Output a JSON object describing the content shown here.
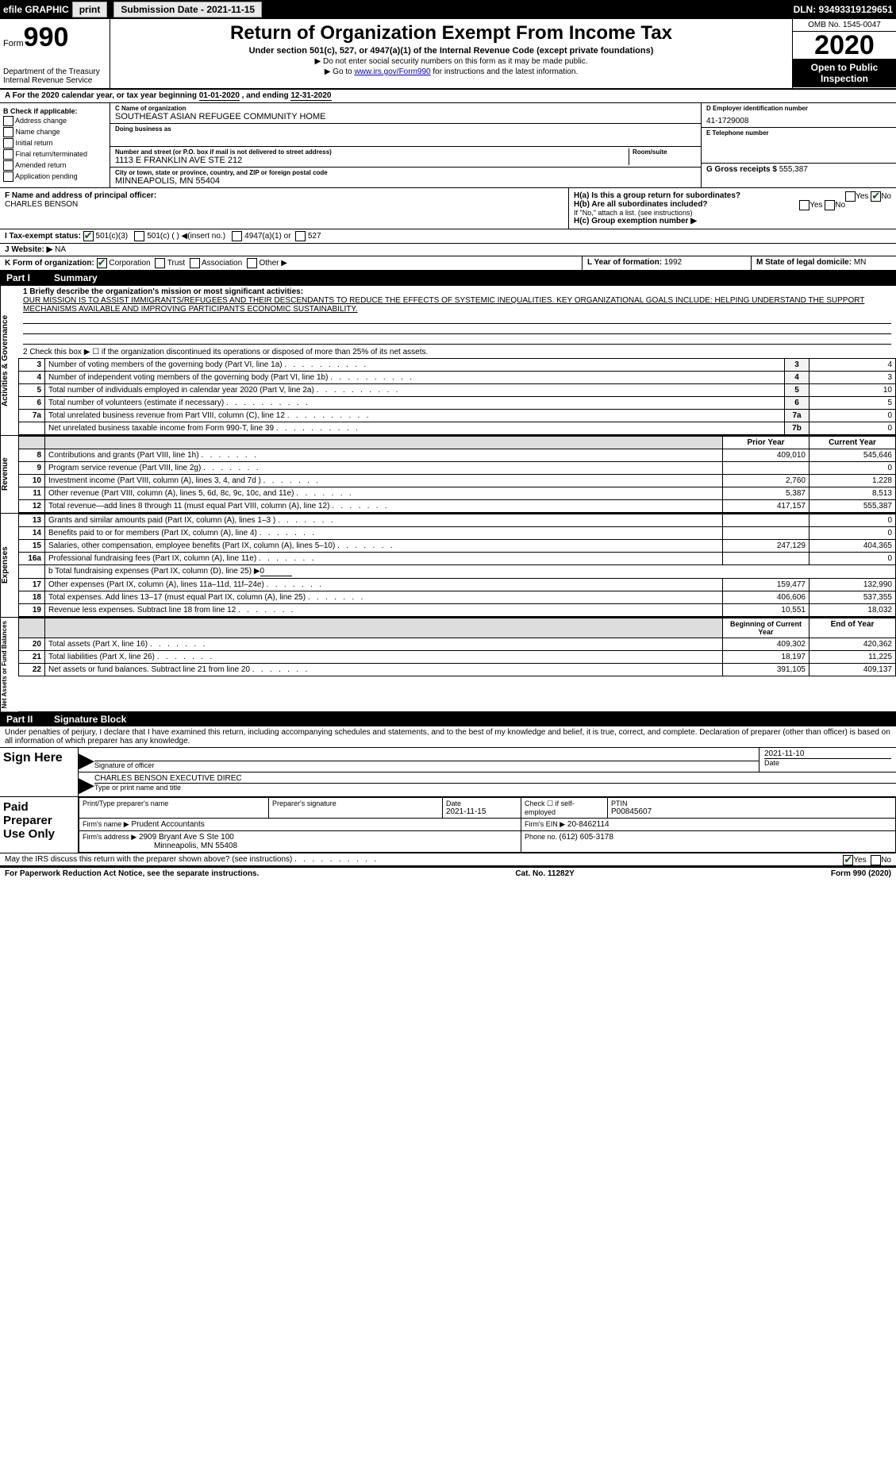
{
  "topbar": {
    "efile": "efile GRAPHIC",
    "print": "print",
    "subdate_lbl": "Submission Date - 2021-11-15",
    "dln": "DLN: 93493319129651"
  },
  "header": {
    "form_label": "Form",
    "form_num": "990",
    "dep": "Department of the Treasury",
    "irs": "Internal Revenue Service",
    "title": "Return of Organization Exempt From Income Tax",
    "sub": "Under section 501(c), 527, or 4947(a)(1) of the Internal Revenue Code (except private foundations)",
    "note1": "▶ Do not enter social security numbers on this form as it may be made public.",
    "note2_pre": "▶ Go to ",
    "note2_link": "www.irs.gov/Form990",
    "note2_post": " for instructions and the latest information.",
    "omb": "OMB No. 1545-0047",
    "year": "2020",
    "otp": "Open to Public Inspection"
  },
  "rowA": {
    "pre": "A For the 2020 calendar year, or tax year beginning ",
    "begin": "01-01-2020",
    "mid": " , and ending ",
    "end": "12-31-2020"
  },
  "colB": {
    "hdr": "B Check if applicable:",
    "items": [
      "Address change",
      "Name change",
      "Initial return",
      "Final return/terminated",
      "Amended return",
      "Application pending"
    ]
  },
  "colC": {
    "name_lbl": "C Name of organization",
    "name": "SOUTHEAST ASIAN REFUGEE COMMUNITY HOME",
    "dba_lbl": "Doing business as",
    "dba": "",
    "addr_lbl": "Number and street (or P.O. box if mail is not delivered to street address)",
    "room_lbl": "Room/suite",
    "addr": "1113 E FRANKLIN AVE STE 212",
    "city_lbl": "City or town, state or province, country, and ZIP or foreign postal code",
    "city": "MINNEAPOLIS, MN  55404",
    "f_lbl": "F  Name and address of principal officer:",
    "f_name": "CHARLES BENSON"
  },
  "colD": {
    "lbl": "D Employer identification number",
    "ein": "41-1729008",
    "e_lbl": "E Telephone number",
    "e_val": "",
    "g_lbl": "G Gross receipts $ ",
    "g_val": "555,387"
  },
  "rowH": {
    "h_a": "H(a)  Is this a group return for subordinates?",
    "h_a_yes": "Yes",
    "h_a_no": "No",
    "h_a_checked": "No",
    "h_b": "H(b)  Are all subordinates included?",
    "h_b_yes": "Yes",
    "h_b_no": "No",
    "h_note": "If \"No,\" attach a list. (see instructions)",
    "h_c": "H(c)  Group exemption number ▶"
  },
  "rowI": {
    "lbl": "I   Tax-exempt status:",
    "c1": "501(c)(3)",
    "c2": "501(c) (  ) ◀(insert no.)",
    "c3": "4947(a)(1) or",
    "c4": "527"
  },
  "rowJ": {
    "lbl": "J   Website: ▶",
    "val": "NA"
  },
  "rowK": {
    "lbl": "K Form of organization:",
    "c1": "Corporation",
    "c2": "Trust",
    "c3": "Association",
    "c4": "Other ▶"
  },
  "rowL": {
    "l": "L Year of formation: ",
    "lval": "1992",
    "m": "M State of legal domicile: ",
    "mval": "MN"
  },
  "part1": {
    "pn": "Part I",
    "title": "Summary",
    "l1": "1   Briefly describe the organization's mission or most significant activities:",
    "mission": "OUR MISSION IS TO ASSIST IMMIGRANTS/REFUGEES AND THEIR DESCENDANTS TO REDUCE THE EFFECTS OF SYSTEMIC INEQUALITIES. KEY ORGANIZATIONAL GOALS INCLUDE: HELPING UNDERSTAND THE SUPPORT MECHANISMS AVAILABLE AND IMPROVING PARTICIPANTS ECONOMIC SUSTAINABILITY.",
    "l2": "2   Check this box ▶ ☐ if the organization discontinued its operations or disposed of more than 25% of its net assets."
  },
  "gov": {
    "side": "Activities & Governance",
    "rows": [
      {
        "n": "3",
        "t": "Number of voting members of the governing body (Part VI, line 1a)",
        "lbl": "3",
        "v": "4"
      },
      {
        "n": "4",
        "t": "Number of independent voting members of the governing body (Part VI, line 1b)",
        "lbl": "4",
        "v": "3"
      },
      {
        "n": "5",
        "t": "Total number of individuals employed in calendar year 2020 (Part V, line 2a)",
        "lbl": "5",
        "v": "10"
      },
      {
        "n": "6",
        "t": "Total number of volunteers (estimate if necessary)",
        "lbl": "6",
        "v": "5"
      },
      {
        "n": "7a",
        "t": "Total unrelated business revenue from Part VIII, column (C), line 12",
        "lbl": "7a",
        "v": "0"
      },
      {
        "n": "",
        "t": "Net unrelated business taxable income from Form 990-T, line 39",
        "lbl": "7b",
        "v": "0"
      }
    ]
  },
  "rev": {
    "side": "Revenue",
    "hdr_prior": "Prior Year",
    "hdr_curr": "Current Year",
    "rows": [
      {
        "n": "8",
        "t": "Contributions and grants (Part VIII, line 1h)",
        "p": "409,010",
        "c": "545,646"
      },
      {
        "n": "9",
        "t": "Program service revenue (Part VIII, line 2g)",
        "p": "",
        "c": "0"
      },
      {
        "n": "10",
        "t": "Investment income (Part VIII, column (A), lines 3, 4, and 7d )",
        "p": "2,760",
        "c": "1,228"
      },
      {
        "n": "11",
        "t": "Other revenue (Part VIII, column (A), lines 5, 6d, 8c, 9c, 10c, and 11e)",
        "p": "5,387",
        "c": "8,513"
      },
      {
        "n": "12",
        "t": "Total revenue—add lines 8 through 11 (must equal Part VIII, column (A), line 12)",
        "p": "417,157",
        "c": "555,387"
      }
    ]
  },
  "exp": {
    "side": "Expenses",
    "rows": [
      {
        "n": "13",
        "t": "Grants and similar amounts paid (Part IX, column (A), lines 1–3 )",
        "p": "",
        "c": "0"
      },
      {
        "n": "14",
        "t": "Benefits paid to or for members (Part IX, column (A), line 4)",
        "p": "",
        "c": "0"
      },
      {
        "n": "15",
        "t": "Salaries, other compensation, employee benefits (Part IX, column (A), lines 5–10)",
        "p": "247,129",
        "c": "404,365"
      },
      {
        "n": "16a",
        "t": "Professional fundraising fees (Part IX, column (A), line 11e)",
        "p": "",
        "c": "0"
      }
    ],
    "l16b_pre": "b  Total fundraising expenses (Part IX, column (D), line 25) ▶",
    "l16b_val": "0",
    "rows2": [
      {
        "n": "17",
        "t": "Other expenses (Part IX, column (A), lines 11a–11d, 11f–24e)",
        "p": "159,477",
        "c": "132,990"
      },
      {
        "n": "18",
        "t": "Total expenses. Add lines 13–17 (must equal Part IX, column (A), line 25)",
        "p": "406,606",
        "c": "537,355"
      },
      {
        "n": "19",
        "t": "Revenue less expenses. Subtract line 18 from line 12",
        "p": "10,551",
        "c": "18,032"
      }
    ]
  },
  "net": {
    "side": "Net Assets or Fund Balances",
    "hdr_beg": "Beginning of Current Year",
    "hdr_end": "End of Year",
    "rows": [
      {
        "n": "20",
        "t": "Total assets (Part X, line 16)",
        "p": "409,302",
        "c": "420,362"
      },
      {
        "n": "21",
        "t": "Total liabilities (Part X, line 26)",
        "p": "18,197",
        "c": "11,225"
      },
      {
        "n": "22",
        "t": "Net assets or fund balances. Subtract line 21 from line 20",
        "p": "391,105",
        "c": "409,137"
      }
    ]
  },
  "part2": {
    "pn": "Part II",
    "title": "Signature Block",
    "decl": "Under penalties of perjury, I declare that I have examined this return, including accompanying schedules and statements, and to the best of my knowledge and belief, it is true, correct, and complete. Declaration of preparer (other than officer) is based on all information of which preparer has any knowledge."
  },
  "sign": {
    "side": "Sign Here",
    "sig_lbl": "Signature of officer",
    "date": "2021-11-10",
    "date_lbl": "Date",
    "name": "CHARLES BENSON  EXECUTIVE DIREC",
    "name_lbl": "Type or print name and title"
  },
  "prep": {
    "side": "Paid Preparer Use Only",
    "r1": {
      "c1": "Print/Type preparer's name",
      "c2": "Preparer's signature",
      "c3": "Date",
      "c3v": "2021-11-15",
      "c4": "Check ☐ if self-employed",
      "c5": "PTIN",
      "c5v": "P00845607"
    },
    "r2": {
      "c1": "Firm's name    ▶",
      "c1v": "Prudent Accountants",
      "c2": "Firm's EIN ▶",
      "c2v": "20-8462114"
    },
    "r3": {
      "c1": "Firm's address ▶",
      "c1v": "2909 Bryant Ave S Ste 100",
      "c1v2": "Minneapolis, MN  55408",
      "c2": "Phone no. ",
      "c2v": "(612) 605-3178"
    }
  },
  "discuss": {
    "q": "May the IRS discuss this return with the preparer shown above? (see instructions)",
    "yes": "Yes",
    "no": "No"
  },
  "footer": {
    "l": "For Paperwork Reduction Act Notice, see the separate instructions.",
    "m": "Cat. No. 11282Y",
    "r": "Form 990 (2020)"
  }
}
